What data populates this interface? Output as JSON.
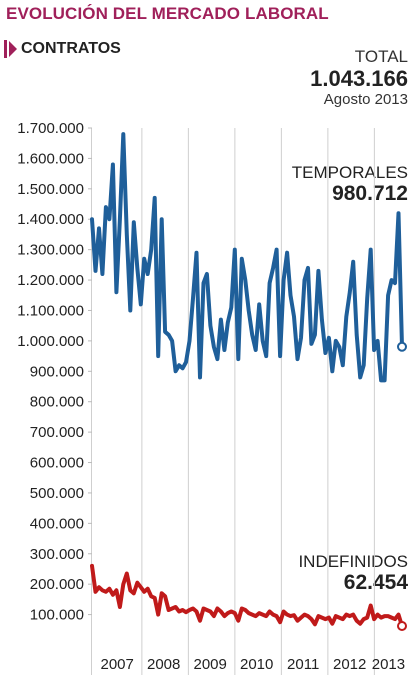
{
  "header": {
    "title": "EVOLUCIÓN DEL MERCADO LABORAL",
    "subtitle": "CONTRATOS",
    "accent_color": "#a0205a"
  },
  "total": {
    "label": "TOTAL",
    "value": "1.043.166",
    "period": "Agosto 2013"
  },
  "chart_data": {
    "type": "line",
    "title": "EVOLUCIÓN DEL MERCADO LABORAL",
    "subtitle": "CONTRATOS",
    "xlabel": "",
    "ylabel": "",
    "ylim": [
      0,
      1700000
    ],
    "yticks": [
      100000,
      200000,
      300000,
      400000,
      500000,
      600000,
      700000,
      800000,
      900000,
      1000000,
      1100000,
      1200000,
      1300000,
      1400000,
      1500000,
      1600000,
      1700000
    ],
    "ytick_labels": [
      "100.000",
      "200.000",
      "300.000",
      "400.000",
      "500.000",
      "600.000",
      "700.000",
      "800.000",
      "900.000",
      "1.000.000",
      "1.100.000",
      "1.200.000",
      "1.300.000",
      "1.400.000",
      "1.500.000",
      "1.600.000",
      "1.700.000"
    ],
    "xlim": [
      "2006-12",
      "2013-08"
    ],
    "x_labels": [
      "2007",
      "2008",
      "2009",
      "2010",
      "2011",
      "2012",
      "2013"
    ],
    "grid": "vertical separators between years",
    "series": [
      {
        "name": "TEMPORALES",
        "value_label": "980.712",
        "color": "#1f5f9a",
        "values": [
          1400000,
          1230000,
          1370000,
          1220000,
          1440000,
          1400000,
          1580000,
          1160000,
          1400000,
          1680000,
          1350000,
          1100000,
          1390000,
          1240000,
          1120000,
          1270000,
          1220000,
          1300000,
          1470000,
          950000,
          1400000,
          1030000,
          1020000,
          1000000,
          900000,
          920000,
          910000,
          930000,
          1000000,
          1140000,
          1290000,
          880000,
          1190000,
          1220000,
          1050000,
          980000,
          940000,
          1070000,
          970000,
          1060000,
          1110000,
          1300000,
          940000,
          1270000,
          1200000,
          1100000,
          1020000,
          970000,
          1120000,
          1000000,
          950000,
          1190000,
          1240000,
          1300000,
          950000,
          1200000,
          1290000,
          1150000,
          1080000,
          940000,
          1010000,
          1200000,
          1240000,
          990000,
          1020000,
          1230000,
          1070000,
          960000,
          1010000,
          900000,
          1000000,
          980000,
          920000,
          1080000,
          1160000,
          1260000,
          1020000,
          880000,
          920000,
          1140000,
          1300000,
          970000,
          1000000,
          870000,
          870000,
          1150000,
          1200000,
          1190000,
          1420000,
          980712
        ]
      },
      {
        "name": "INDEFINIDOS",
        "value_label": "62.454",
        "color": "#c01a1a",
        "values": [
          260000,
          175000,
          190000,
          180000,
          175000,
          185000,
          165000,
          180000,
          125000,
          200000,
          235000,
          180000,
          170000,
          205000,
          190000,
          175000,
          185000,
          160000,
          155000,
          100000,
          170000,
          160000,
          115000,
          120000,
          125000,
          110000,
          115000,
          108000,
          115000,
          120000,
          110000,
          80000,
          120000,
          115000,
          110000,
          95000,
          120000,
          110000,
          95000,
          105000,
          110000,
          105000,
          80000,
          120000,
          115000,
          105000,
          100000,
          95000,
          105000,
          100000,
          95000,
          110000,
          100000,
          95000,
          75000,
          110000,
          100000,
          95000,
          98000,
          80000,
          90000,
          100000,
          95000,
          85000,
          68000,
          95000,
          90000,
          85000,
          90000,
          70000,
          95000,
          90000,
          85000,
          100000,
          95000,
          100000,
          80000,
          70000,
          85000,
          90000,
          130000,
          85000,
          100000,
          90000,
          95000,
          95000,
          90000,
          85000,
          100000,
          62454
        ]
      }
    ]
  }
}
